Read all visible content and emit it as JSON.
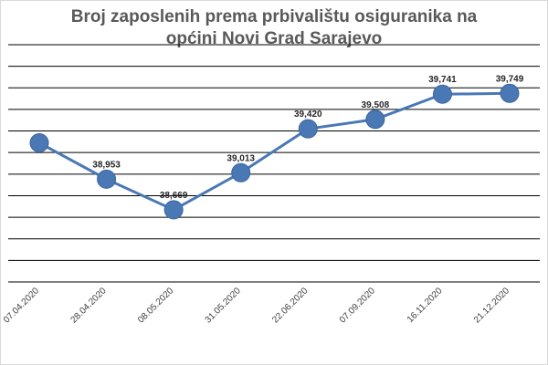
{
  "chart_data": {
    "type": "line",
    "title_lines": [
      "Broj zaposlenih prema prbivalištu osiguranika na",
      "općini Novi Grad Sarajevo"
    ],
    "categories": [
      "07.04.2020",
      "28.04.2020",
      "08.05.2020",
      "31.05.2020",
      "22.06.2020",
      "07.09.2020",
      "16.11.2020",
      "21.12.2020"
    ],
    "values": [
      39290,
      38953,
      38669,
      39013,
      39420,
      39508,
      39741,
      39749
    ],
    "data_labels": [
      "",
      "38,953",
      "38,669",
      "39,013",
      "39,420",
      "39,508",
      "39,741",
      "39,749"
    ],
    "ylim": [
      38000,
      40200
    ],
    "y_gridline_step": 200,
    "grid": true,
    "legend": "none",
    "colors": {
      "line": "#4a78b5",
      "marker": "#4a78b5",
      "marker_edge": "#3a64a0",
      "grid": "#000000"
    }
  }
}
